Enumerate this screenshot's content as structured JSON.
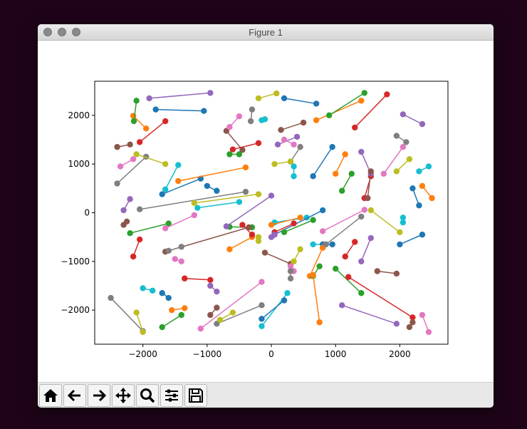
{
  "window": {
    "title": "Figure 1"
  },
  "toolbar": {
    "buttons": [
      {
        "id": "home",
        "icon": "home-icon"
      },
      {
        "id": "back",
        "icon": "arrow-left-icon"
      },
      {
        "id": "forward",
        "icon": "arrow-right-icon"
      },
      {
        "id": "pan",
        "icon": "move-icon"
      },
      {
        "id": "zoom",
        "icon": "search-icon"
      },
      {
        "id": "configure",
        "icon": "sliders-icon"
      },
      {
        "id": "save",
        "icon": "floppy-disk-icon"
      }
    ]
  },
  "chart_data": {
    "type": "line",
    "xlim": [
      -2750,
      2750
    ],
    "ylim": [
      -2700,
      2700
    ],
    "xticks": [
      -2000,
      -1000,
      0,
      1000,
      2000
    ],
    "xtick_labels": [
      "−2000",
      "−1000",
      "0",
      "1000",
      "2000"
    ],
    "yticks": [
      -2000,
      -1000,
      0,
      1000,
      2000
    ],
    "ytick_labels": [
      "−2000",
      "−1000",
      "0",
      "1000",
      "2000"
    ],
    "grid": false,
    "colors": [
      "#1f77b4",
      "#ff7f0e",
      "#2ca02c",
      "#d62728",
      "#9467bd",
      "#8c564b",
      "#e377c2",
      "#7f7f7f",
      "#bcbd22",
      "#17becf"
    ],
    "segments": [
      [
        [
          -1800,
          2120
        ],
        [
          -1050,
          2090
        ]
      ],
      [
        [
          -1950,
          1730
        ],
        [
          -2150,
          1990
        ]
      ],
      [
        [
          -2100,
          2300
        ],
        [
          -2140,
          1880
        ]
      ],
      [
        [
          -2050,
          1450
        ],
        [
          -1650,
          1880
        ]
      ],
      [
        [
          -1900,
          2350
        ],
        [
          -950,
          2460
        ]
      ],
      [
        [
          -700,
          1680
        ],
        [
          -450,
          1290
        ]
      ],
      [
        [
          -500,
          1980
        ],
        [
          -650,
          1760
        ]
      ],
      [
        [
          -300,
          2120
        ],
        [
          -320,
          1880
        ]
      ],
      [
        [
          -200,
          2350
        ],
        [
          80,
          2450
        ]
      ],
      [
        [
          -150,
          1900
        ],
        [
          -100,
          1920
        ]
      ],
      [
        [
          200,
          2350
        ],
        [
          700,
          2240
        ]
      ],
      [
        [
          700,
          1900
        ],
        [
          1400,
          2300
        ]
      ],
      [
        [
          900,
          2000
        ],
        [
          1450,
          2460
        ]
      ],
      [
        [
          1300,
          1750
        ],
        [
          1800,
          2430
        ]
      ],
      [
        [
          2050,
          2020
        ],
        [
          2350,
          1820
        ]
      ],
      [
        [
          -2400,
          1350
        ],
        [
          -2200,
          1400
        ]
      ],
      [
        [
          -2350,
          950
        ],
        [
          -2150,
          1100
        ]
      ],
      [
        [
          -2400,
          600
        ],
        [
          -1950,
          1150
        ]
      ],
      [
        [
          -2100,
          1200
        ],
        [
          -1650,
          1000
        ]
      ],
      [
        [
          -1650,
          480
        ],
        [
          -1450,
          980
        ]
      ],
      [
        [
          -1700,
          380
        ],
        [
          -1100,
          700
        ]
      ],
      [
        [
          -1450,
          650
        ],
        [
          -400,
          930
        ]
      ],
      [
        [
          -650,
          1200
        ],
        [
          -500,
          1200
        ]
      ],
      [
        [
          -600,
          1300
        ],
        [
          -200,
          1430
        ]
      ],
      [
        [
          100,
          1400
        ],
        [
          400,
          1560
        ]
      ],
      [
        [
          150,
          1700
        ],
        [
          500,
          1850
        ]
      ],
      [
        [
          200,
          1500
        ],
        [
          350,
          1400
        ]
      ],
      [
        [
          300,
          1050
        ],
        [
          450,
          1350
        ]
      ],
      [
        [
          50,
          1000
        ],
        [
          300,
          1050
        ]
      ],
      [
        [
          350,
          750
        ],
        [
          350,
          950
        ]
      ],
      [
        [
          650,
          750
        ],
        [
          950,
          1350
        ]
      ],
      [
        [
          1000,
          800
        ],
        [
          1150,
          1200
        ]
      ],
      [
        [
          1100,
          450
        ],
        [
          1250,
          800
        ]
      ],
      [
        [
          1450,
          300
        ],
        [
          1550,
          750
        ]
      ],
      [
        [
          1400,
          1250
        ],
        [
          1550,
          800
        ]
      ],
      [
        [
          1500,
          300
        ],
        [
          1550,
          850
        ]
      ],
      [
        [
          1750,
          800
        ],
        [
          2050,
          1350
        ]
      ],
      [
        [
          1950,
          1580
        ],
        [
          2100,
          1450
        ]
      ],
      [
        [
          1950,
          850
        ],
        [
          2150,
          1100
        ]
      ],
      [
        [
          2300,
          850
        ],
        [
          2450,
          950
        ]
      ],
      [
        [
          2200,
          500
        ],
        [
          2300,
          150
        ]
      ],
      [
        [
          2350,
          550
        ],
        [
          2500,
          300
        ]
      ],
      [
        [
          -2200,
          -420
        ],
        [
          -1600,
          -220
        ]
      ],
      [
        [
          -2150,
          -900
        ],
        [
          -2050,
          -550
        ]
      ],
      [
        [
          -2300,
          50
        ],
        [
          -2200,
          280
        ]
      ],
      [
        [
          -2300,
          -250
        ],
        [
          -2250,
          -180
        ]
      ],
      [
        [
          -1650,
          -320
        ],
        [
          -1200,
          -50
        ]
      ],
      [
        [
          -2050,
          70
        ],
        [
          -400,
          430
        ]
      ],
      [
        [
          -1200,
          200
        ],
        [
          -200,
          380
        ]
      ],
      [
        [
          -1150,
          100
        ],
        [
          -500,
          220
        ]
      ],
      [
        [
          -1000,
          550
        ],
        [
          -850,
          450
        ]
      ],
      [
        [
          -650,
          -750
        ],
        [
          -300,
          -500
        ]
      ],
      [
        [
          -650,
          -290
        ],
        [
          -300,
          -300
        ]
      ],
      [
        [
          -450,
          -250
        ],
        [
          -300,
          -450
        ]
      ],
      [
        [
          -700,
          -280
        ],
        [
          0,
          350
        ]
      ],
      [
        [
          -1650,
          -800
        ],
        [
          -350,
          -300
        ]
      ],
      [
        [
          -1500,
          -950
        ],
        [
          -1400,
          -1000
        ]
      ],
      [
        [
          -1400,
          -700
        ],
        [
          -1600,
          -780
        ]
      ],
      [
        [
          -200,
          -500
        ],
        [
          -200,
          -580
        ]
      ],
      [
        [
          50,
          -200
        ],
        [
          550,
          -100
        ]
      ],
      [
        [
          50,
          -450
        ],
        [
          800,
          50
        ]
      ],
      [
        [
          0,
          -250
        ],
        [
          450,
          -100
        ]
      ],
      [
        [
          200,
          -400
        ],
        [
          650,
          -150
        ]
      ],
      [
        [
          50,
          -400
        ],
        [
          350,
          -220
        ]
      ],
      [
        [
          0,
          -500
        ],
        [
          50,
          -450
        ]
      ],
      [
        [
          -100,
          -820
        ],
        [
          300,
          -1050
        ]
      ],
      [
        [
          300,
          -1100
        ],
        [
          350,
          -1200
        ]
      ],
      [
        [
          300,
          -1200
        ],
        [
          300,
          -1350
        ]
      ],
      [
        [
          350,
          -1000
        ],
        [
          450,
          -750
        ]
      ],
      [
        [
          650,
          -650
        ],
        [
          850,
          -650
        ]
      ],
      [
        [
          800,
          -650
        ],
        [
          950,
          -650
        ]
      ],
      [
        [
          600,
          -1300
        ],
        [
          800,
          -720
        ]
      ],
      [
        [
          750,
          -1100
        ],
        [
          650,
          -1300
        ]
      ],
      [
        [
          1150,
          -900
        ],
        [
          1300,
          -600
        ]
      ],
      [
        [
          1400,
          -1000
        ],
        [
          1550,
          -520
        ]
      ],
      [
        [
          1650,
          -1200
        ],
        [
          1950,
          -1250
        ]
      ],
      [
        [
          800,
          -380
        ],
        [
          1450,
          60
        ]
      ],
      [
        [
          850,
          -650
        ],
        [
          1400,
          -80
        ]
      ],
      [
        [
          1550,
          50
        ],
        [
          2000,
          -400
        ]
      ],
      [
        [
          2050,
          -100
        ],
        [
          2050,
          -200
        ]
      ],
      [
        [
          2000,
          -650
        ],
        [
          2350,
          -450
        ]
      ],
      [
        [
          650,
          -1280
        ],
        [
          750,
          -2250
        ]
      ],
      [
        [
          1000,
          -1150
        ],
        [
          1400,
          -1650
        ]
      ],
      [
        [
          1200,
          -1320
        ],
        [
          2200,
          -2150
        ]
      ],
      [
        [
          1100,
          -1900
        ],
        [
          1950,
          -2280
        ]
      ],
      [
        [
          2200,
          -2250
        ],
        [
          2150,
          -2350
        ]
      ],
      [
        [
          2350,
          -2100
        ],
        [
          2450,
          -2450
        ]
      ],
      [
        [
          -2500,
          -1750
        ],
        [
          -2000,
          -2430
        ]
      ],
      [
        [
          -2100,
          -2050
        ],
        [
          -2000,
          -2450
        ]
      ],
      [
        [
          -2000,
          -1550
        ],
        [
          -1850,
          -1600
        ]
      ],
      [
        [
          -1700,
          -1650
        ],
        [
          -1600,
          -1750
        ]
      ],
      [
        [
          -1550,
          -2000
        ],
        [
          -1350,
          -1960
        ]
      ],
      [
        [
          -1700,
          -2350
        ],
        [
          -1400,
          -2100
        ]
      ],
      [
        [
          -1350,
          -1350
        ],
        [
          -950,
          -1380
        ]
      ],
      [
        [
          -950,
          -1500
        ],
        [
          -850,
          -1620
        ]
      ],
      [
        [
          -950,
          -2100
        ],
        [
          -850,
          -1950
        ]
      ],
      [
        [
          -1100,
          -2380
        ],
        [
          -150,
          -1420
        ]
      ],
      [
        [
          -850,
          -2280
        ],
        [
          -150,
          -1900
        ]
      ],
      [
        [
          -800,
          -2200
        ],
        [
          -600,
          -2050
        ]
      ],
      [
        [
          -150,
          -2330
        ],
        [
          250,
          -1650
        ]
      ],
      [
        [
          -150,
          -2180
        ],
        [
          200,
          -1800
        ]
      ]
    ]
  }
}
